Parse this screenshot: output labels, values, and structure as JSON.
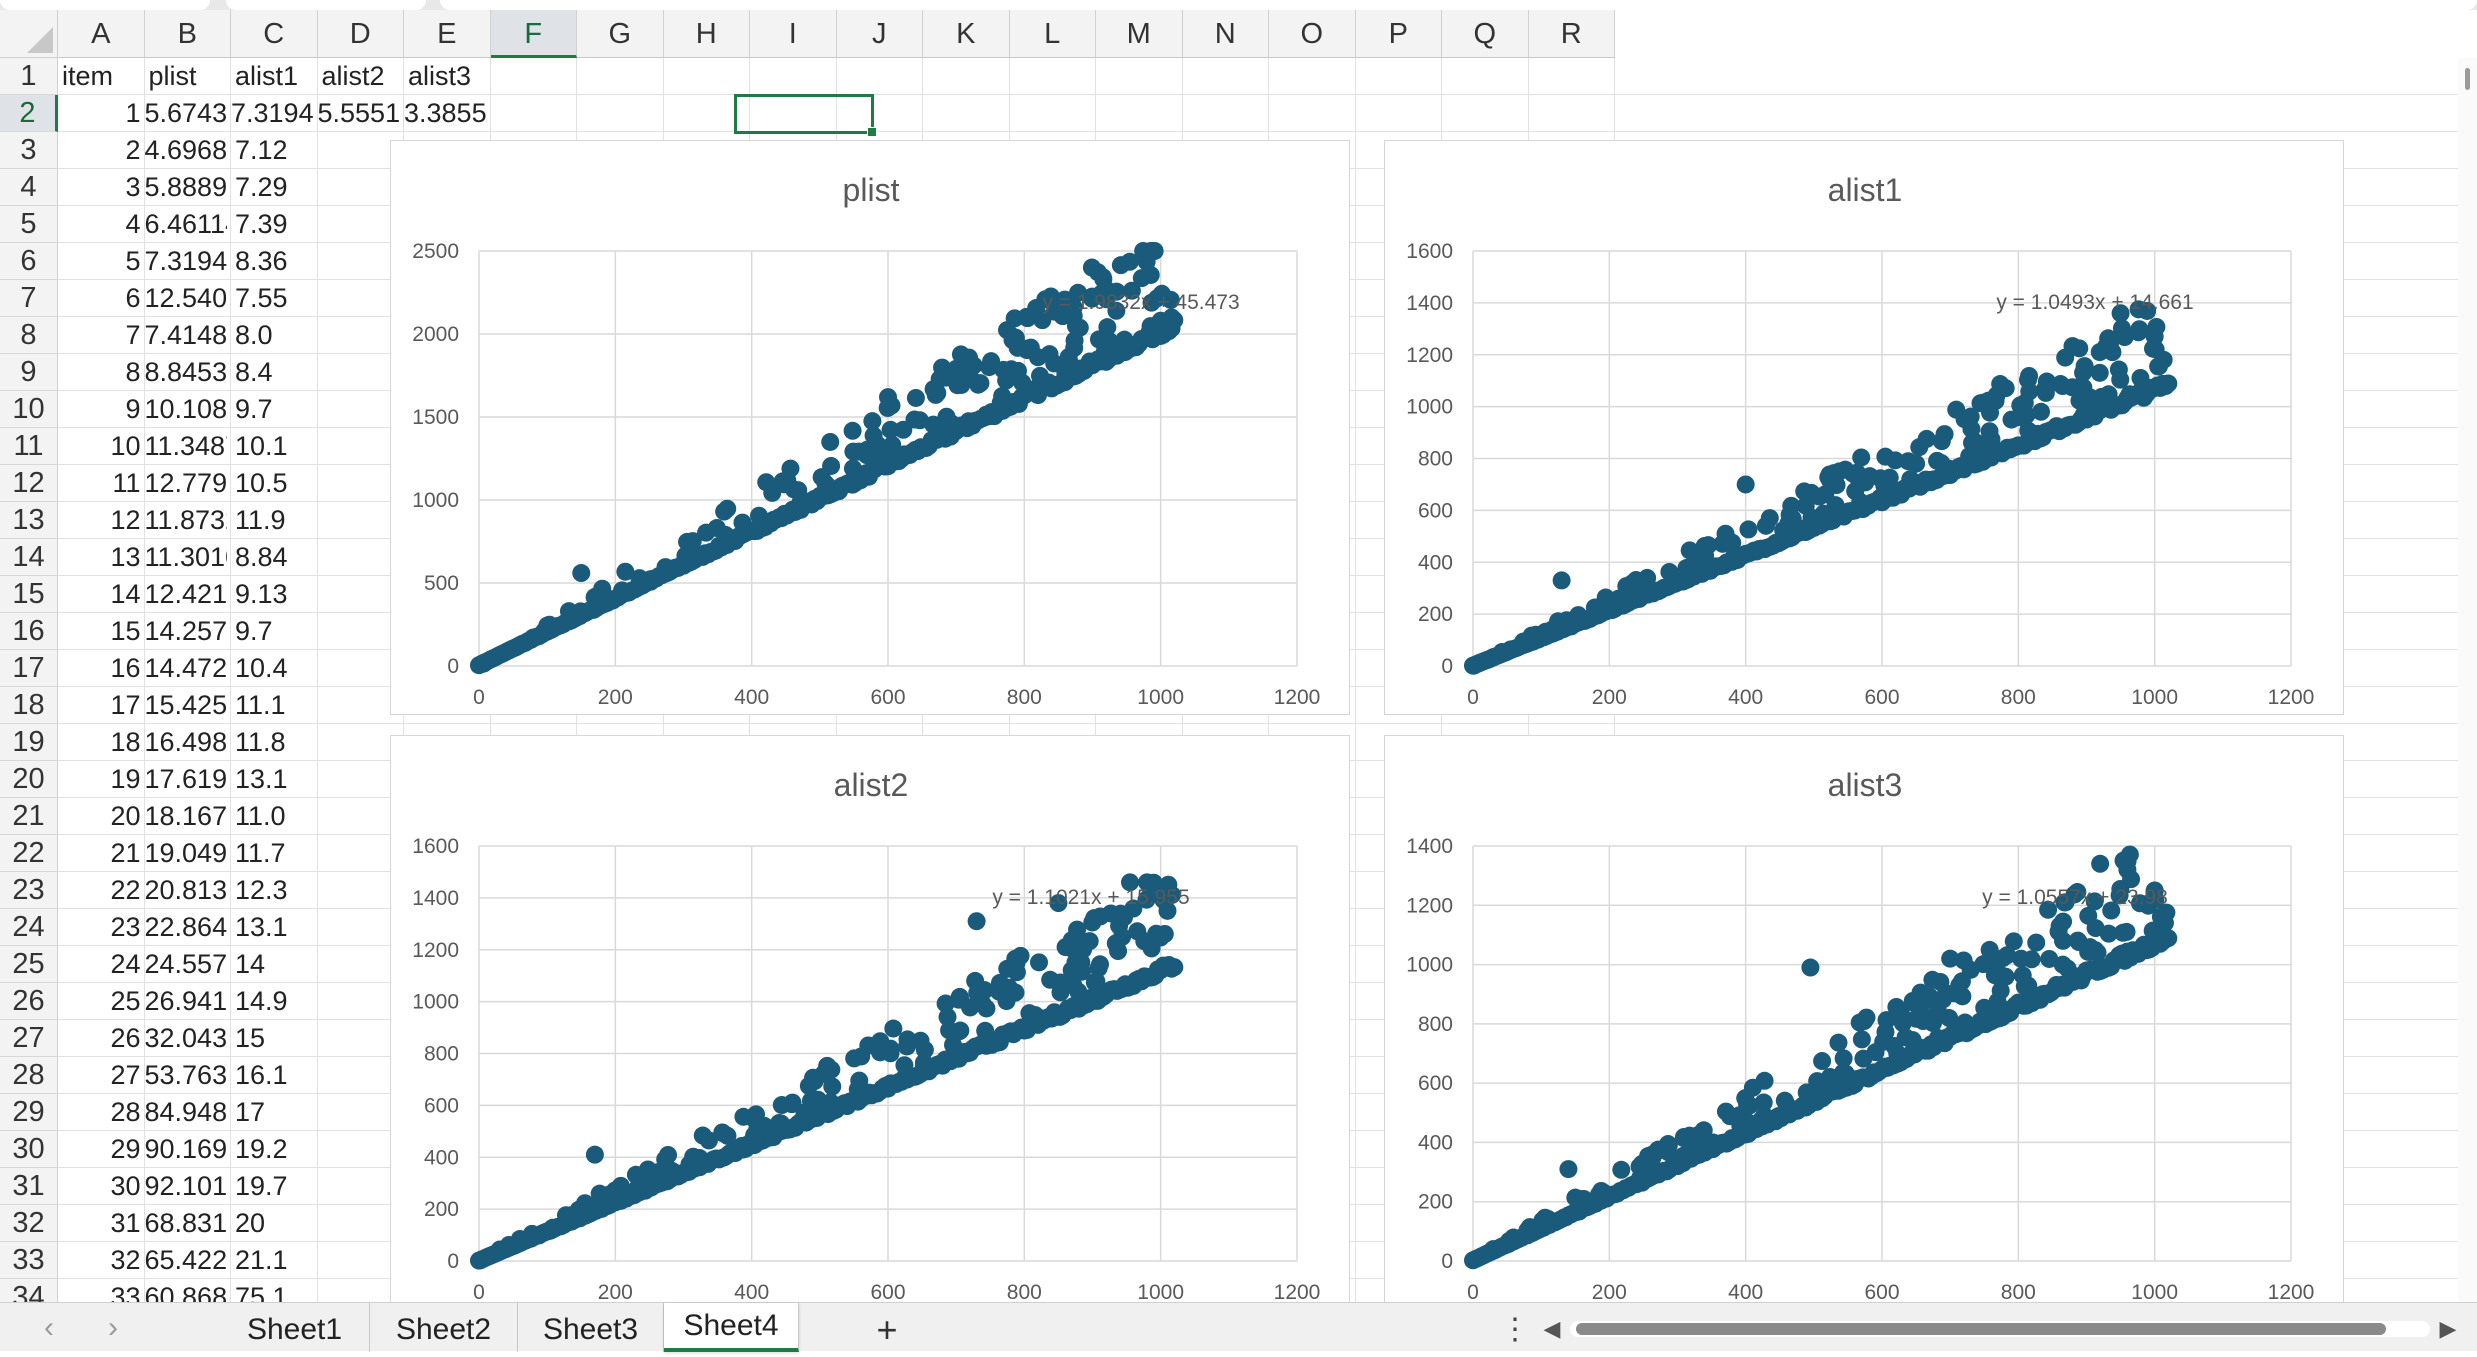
{
  "columns": [
    "A",
    "B",
    "C",
    "D",
    "E",
    "F",
    "G",
    "H",
    "I",
    "J",
    "K",
    "L",
    "M",
    "N",
    "O",
    "P",
    "Q",
    "R"
  ],
  "selected_column": "F",
  "selected_row": 2,
  "row_numbers": [
    1,
    2,
    3,
    4,
    5,
    6,
    7,
    8,
    9,
    10,
    11,
    12,
    13,
    14,
    15,
    16,
    17,
    18,
    19,
    20,
    21,
    22,
    23,
    24,
    25,
    26,
    27,
    28,
    29,
    30,
    31,
    32,
    33,
    34
  ],
  "header_row": [
    "item",
    "plist",
    "alist1",
    "alist2",
    "alist3"
  ],
  "first_data_row": [
    "1",
    "5.674362",
    "7.31945",
    "5.555153",
    "3.385544"
  ],
  "rows": [
    {
      "a": "2",
      "b": "4.696846",
      "c": "7.12"
    },
    {
      "a": "3",
      "b": "5.888939",
      "c": "7.29"
    },
    {
      "a": "4",
      "b": "6.461143",
      "c": "7.39"
    },
    {
      "a": "5",
      "b": "7.31945",
      "c": "8.36"
    },
    {
      "a": "6",
      "b": "12.54082",
      "c": "7.55"
    },
    {
      "a": "7",
      "b": "7.414818",
      "c": "8.0"
    },
    {
      "a": "8",
      "b": "8.845329",
      "c": "8.4"
    },
    {
      "a": "9",
      "b": "10.10895",
      "c": "9.7"
    },
    {
      "a": "10",
      "b": "11.34872",
      "c": "10.1"
    },
    {
      "a": "11",
      "b": "12.77924",
      "c": "10.5"
    },
    {
      "a": "12",
      "b": "11.87325",
      "c": "11.9"
    },
    {
      "a": "13",
      "b": "11.30104",
      "c": "8.84"
    },
    {
      "a": "14",
      "b": "12.42161",
      "c": "9.13"
    },
    {
      "a": "15",
      "b": "14.25743",
      "c": "9.7"
    },
    {
      "a": "16",
      "b": "14.47201",
      "c": "10.4"
    },
    {
      "a": "17",
      "b": "15.42568",
      "c": "11.1"
    },
    {
      "a": "18",
      "b": "16.49857",
      "c": "11.8"
    },
    {
      "a": "19",
      "b": "17.61913",
      "c": "13.1"
    },
    {
      "a": "20",
      "b": "18.1675",
      "c": "11.0"
    },
    {
      "a": "21",
      "b": "19.04964",
      "c": "11.7"
    },
    {
      "a": "22",
      "b": "20.81394",
      "c": "12.3"
    },
    {
      "a": "23",
      "b": "22.86434",
      "c": "13.1"
    },
    {
      "a": "24",
      "b": "24.55711",
      "c": "14"
    },
    {
      "a": "25",
      "b": "26.9413",
      "c": "14.9"
    },
    {
      "a": "26",
      "b": "32.04346",
      "c": "15"
    },
    {
      "a": "27",
      "b": "53.76339",
      "c": "16.1"
    },
    {
      "a": "28",
      "b": "84.94854",
      "c": "17"
    },
    {
      "a": "29",
      "b": "90.16991",
      "c": "19.2"
    },
    {
      "a": "30",
      "b": "92.1011",
      "c": "19.7"
    },
    {
      "a": "31",
      "b": "68.83144",
      "c": "20"
    },
    {
      "a": "32",
      "b": "65.42206",
      "c": "21.1"
    },
    {
      "a": "33",
      "b": "60.86826",
      "c": "75.1"
    }
  ],
  "sheet_tabs": [
    "Sheet1",
    "Sheet2",
    "Sheet3",
    "Sheet4"
  ],
  "active_sheet": "Sheet4",
  "add_sheet_label": "+",
  "tab_options_label": "⋮",
  "colors": {
    "marker": "#1a5a7a",
    "selection": "#1f7a45",
    "gridline": "#d9d9d9",
    "axis_text": "#595959"
  },
  "chart_data": [
    {
      "type": "scatter",
      "title": "plist",
      "trendline": "y = 1.9832x + 45.473",
      "slope": 1.9832,
      "intercept": 45.473,
      "xlim": [
        0,
        1200
      ],
      "ylim": [
        0,
        2500
      ],
      "xticks": [
        0,
        200,
        400,
        600,
        800,
        1000,
        1200
      ],
      "yticks": [
        0,
        500,
        1000,
        1500,
        2000,
        2500
      ],
      "x_range": [
        0,
        1020
      ],
      "outliers": [
        [
          150,
          560
        ],
        [
          600,
          1620
        ],
        [
          700,
          1790
        ],
        [
          820,
          1860
        ],
        [
          935,
          2140
        ],
        [
          1000,
          2080
        ]
      ],
      "grid": true
    },
    {
      "type": "scatter",
      "title": "alist1",
      "trendline": "y = 1.0493x + 14.661",
      "slope": 1.0493,
      "intercept": 14.661,
      "xlim": [
        0,
        1200
      ],
      "ylim": [
        0,
        1600
      ],
      "xticks": [
        0,
        200,
        400,
        600,
        800,
        1000,
        1200
      ],
      "yticks": [
        0,
        200,
        400,
        600,
        800,
        1000,
        1200,
        1400,
        1600
      ],
      "x_range": [
        0,
        1020
      ],
      "outliers": [
        [
          130,
          330
        ],
        [
          400,
          700
        ],
        [
          650,
          780
        ],
        [
          790,
          950
        ],
        [
          950,
          1360
        ],
        [
          1000,
          1270
        ]
      ],
      "grid": true
    },
    {
      "type": "scatter",
      "title": "alist2",
      "trendline": "y = 1.1021x + 15.955",
      "slope": 1.1021,
      "intercept": 15.955,
      "xlim": [
        0,
        1200
      ],
      "ylim": [
        0,
        1600
      ],
      "xticks": [
        0,
        200,
        400,
        600,
        800,
        1000,
        1200
      ],
      "yticks": [
        0,
        200,
        400,
        600,
        800,
        1000,
        1200,
        1400,
        1600
      ],
      "x_range": [
        0,
        1020
      ],
      "outliers": [
        [
          170,
          410
        ],
        [
          730,
          1310
        ],
        [
          850,
          1380
        ],
        [
          955,
          1460
        ],
        [
          980,
          1460
        ],
        [
          1010,
          1350
        ]
      ],
      "grid": true
    },
    {
      "type": "scatter",
      "title": "alist3",
      "trendline": "y = 1.0557x + 23.98",
      "slope": 1.0557,
      "intercept": 23.98,
      "xlim": [
        0,
        1200
      ],
      "ylim": [
        0,
        1400
      ],
      "xticks": [
        0,
        200,
        400,
        600,
        800,
        1000,
        1200
      ],
      "yticks": [
        0,
        200,
        400,
        600,
        800,
        1000,
        1200,
        1400
      ],
      "x_range": [
        0,
        1020
      ],
      "outliers": [
        [
          140,
          310
        ],
        [
          495,
          990
        ],
        [
          700,
          1020
        ],
        [
          920,
          1340
        ],
        [
          960,
          1320
        ],
        [
          1000,
          1250
        ]
      ],
      "grid": true
    }
  ]
}
